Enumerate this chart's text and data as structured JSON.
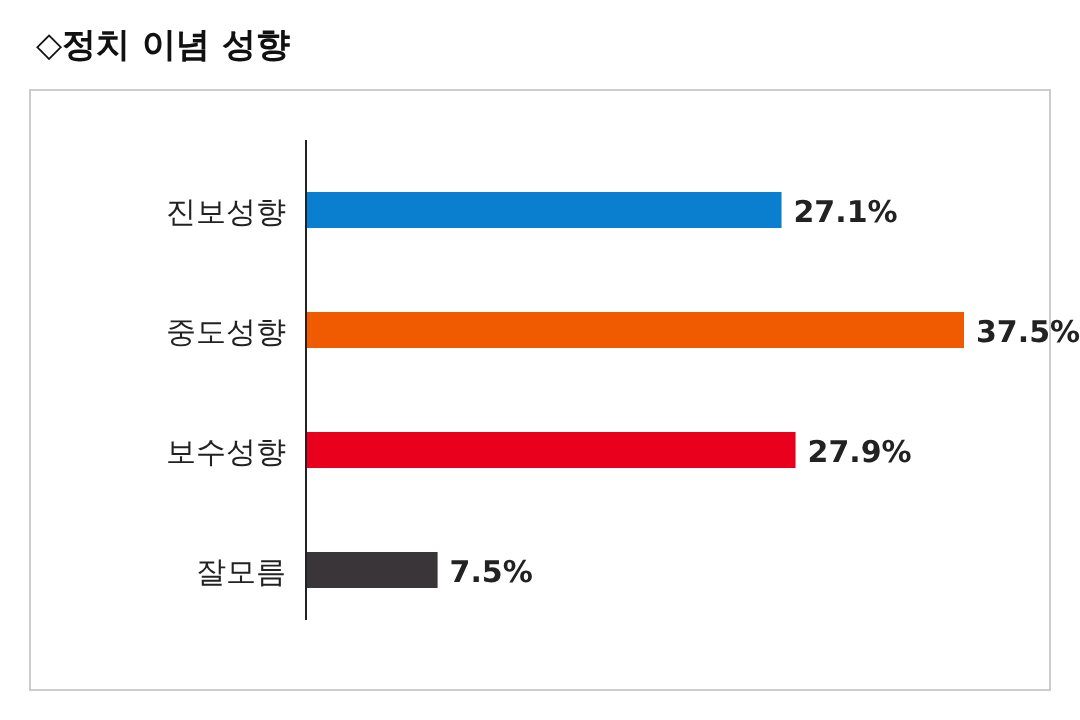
{
  "chart_data": {
    "type": "bar",
    "orientation": "horizontal",
    "title": "◇정치 이념 성향",
    "categories": [
      "진보성향",
      "중도성향",
      "보수성향",
      "잘모름"
    ],
    "values": [
      27.1,
      37.5,
      27.9,
      7.5
    ],
    "colors": [
      "#0a7fd0",
      "#f05a00",
      "#e8001c",
      "#3a3538"
    ],
    "value_labels": [
      "27.1%",
      "37.5%",
      "27.9%",
      "7.5%"
    ]
  }
}
